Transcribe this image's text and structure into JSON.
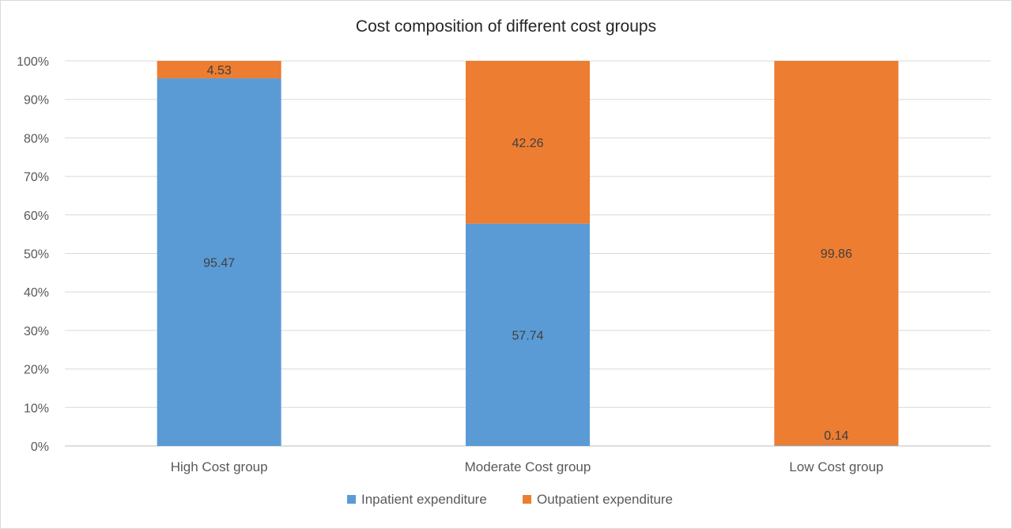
{
  "chart_data": {
    "type": "bar",
    "stacked": true,
    "percent_stacked": true,
    "title": "Cost composition of different cost groups",
    "xlabel": "",
    "ylabel": "",
    "categories": [
      "High Cost group",
      "Moderate Cost group",
      "Low Cost group"
    ],
    "series": [
      {
        "name": "Inpatient expenditure",
        "values": [
          95.47,
          57.74,
          0.14
        ],
        "color": "#5b9bd5"
      },
      {
        "name": "Outpatient expenditure",
        "values": [
          4.53,
          42.26,
          99.86
        ],
        "color": "#ed7d31"
      }
    ],
    "data_labels": [
      [
        "95.47",
        "57.74",
        "0.14"
      ],
      [
        "4.53",
        "42.26",
        "99.86"
      ]
    ],
    "ylim": [
      0,
      100
    ],
    "yticks": [
      "0%",
      "10%",
      "20%",
      "30%",
      "40%",
      "50%",
      "60%",
      "70%",
      "80%",
      "90%",
      "100%"
    ],
    "grid": true,
    "legend_position": "bottom"
  }
}
